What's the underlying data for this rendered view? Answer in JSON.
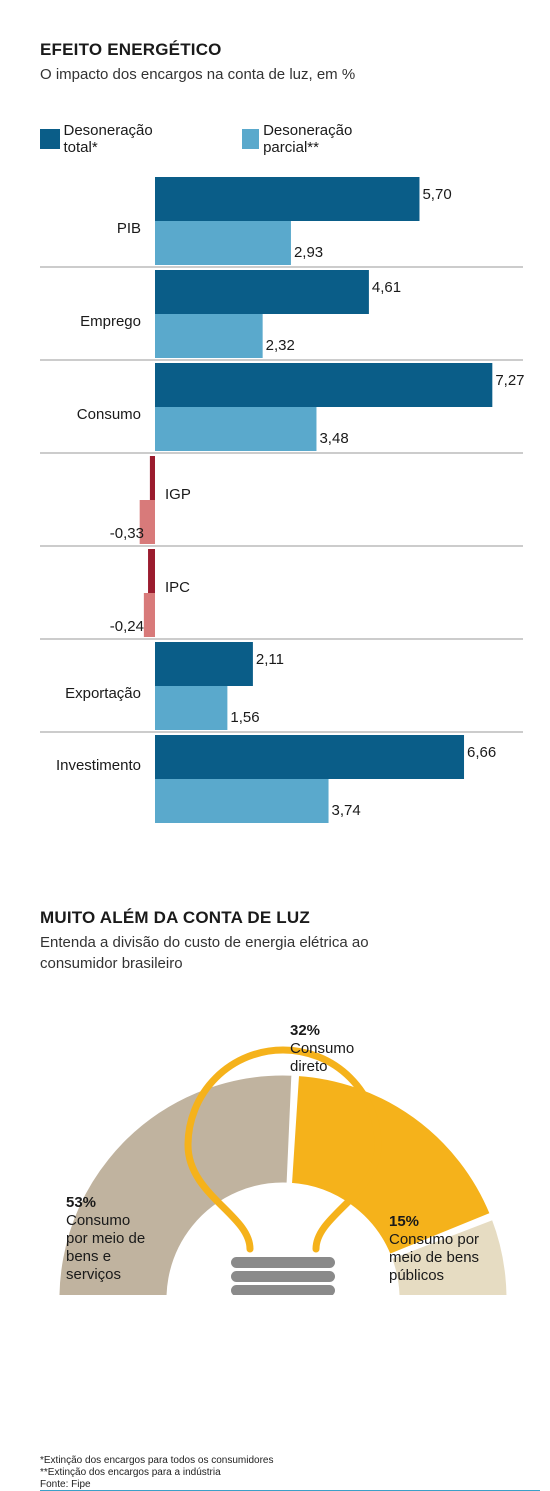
{
  "section1": {
    "title": "EFEITO ENERGÉTICO",
    "subtitle": "O impacto dos encargos na conta de luz, em %"
  },
  "legend": {
    "total": "Desoneração total*",
    "parcial": "Desoneração parcial**"
  },
  "colors": {
    "total": "#0a5d88",
    "parcial": "#5aa9cc",
    "negative_total": "#9b1c2e",
    "negative_parcial": "#d87a7a",
    "divider": "#9a9a9a",
    "pie_direct": "#f5b21b",
    "pie_goods": "#c0b39f",
    "pie_public": "#e6dcc2",
    "bulb": "#f5b21b",
    "bulb_base": "#8a8a8a",
    "footer_line": "#3aa0c8"
  },
  "chart_data": [
    {
      "type": "bar",
      "orientation": "horizontal",
      "title": "EFEITO ENERGÉTICO",
      "subtitle": "O impacto dos encargos na conta de luz, em %",
      "categories": [
        "PIB",
        "Emprego",
        "Consumo",
        "IGP",
        "IPC",
        "Exportação",
        "Investimento"
      ],
      "series": [
        {
          "name": "Desoneração total*",
          "values": [
            5.7,
            4.61,
            7.27,
            -0.11,
            -0.15,
            2.11,
            6.66
          ]
        },
        {
          "name": "Desoneração parcial**",
          "values": [
            2.93,
            2.32,
            3.48,
            -0.33,
            -0.24,
            1.56,
            3.74
          ]
        }
      ],
      "value_labels": [
        [
          "5,70",
          "4,61",
          "7,27",
          "",
          "",
          "2,11",
          "6,66"
        ],
        [
          "2,93",
          "2,32",
          "3,48",
          "-0,33",
          "-0,24",
          "1,56",
          "3,74"
        ]
      ],
      "legend_position": "top-left",
      "grid": false
    },
    {
      "type": "pie",
      "subtype": "half-donut",
      "title": "MUITO ALÉM DA CONTA DE LUZ",
      "subtitle": "Entenda a divisão do custo de energia elétrica ao consumidor brasileiro",
      "slices": [
        {
          "percent_label": "53%",
          "label": "Consumo por meio de bens e serviços",
          "value": 53
        },
        {
          "percent_label": "32%",
          "label": "Consumo direto",
          "value": 32
        },
        {
          "percent_label": "15%",
          "label": "Consumo por meio de bens públicos",
          "value": 15
        }
      ]
    }
  ],
  "section2": {
    "title": "MUITO ALÉM DA CONTA DE LUZ",
    "subtitle_line1": "Entenda a divisão do custo de energia elétrica ao",
    "subtitle_line2": "consumidor brasileiro"
  },
  "pie_labels": {
    "goods_pct": "53%",
    "goods_l1": "Consumo",
    "goods_l2": "por meio de",
    "goods_l3": "bens e",
    "goods_l4": "serviços",
    "direct_pct": "32%",
    "direct_l1": "Consumo",
    "direct_l2": "direto",
    "public_pct": "15%",
    "public_l1": "Consumo por",
    "public_l2": "meio de bens",
    "public_l3": "públicos"
  },
  "footnotes": {
    "note1": "*Extinção dos encargos para todos os consumidores",
    "note2": "**Extinção dos encargos para a indústria",
    "source": "Fonte: Fipe"
  }
}
